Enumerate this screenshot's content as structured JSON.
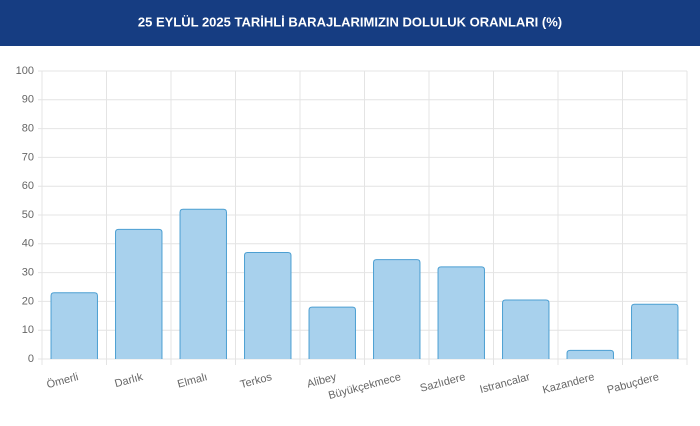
{
  "chart_data": {
    "type": "bar",
    "title": "25 EYLÜL 2025 TARİHLİ BARAJLARIMIZIN DOLULUK ORANLARI (%)",
    "categories": [
      "Ömerli",
      "Darlık",
      "Elmalı",
      "Terkos",
      "Alibey",
      "Büyükçekmece",
      "Sazlıdere",
      "Istrancalar",
      "Kazandere",
      "Pabuçdere"
    ],
    "values": [
      23,
      45,
      52,
      37,
      18,
      34.5,
      32,
      20.5,
      3,
      19
    ],
    "color": "#a8d1ed",
    "border_color": "#4c9fd2",
    "ylim": [
      0,
      100
    ],
    "yticks": [
      0,
      10,
      20,
      30,
      40,
      50,
      60,
      70,
      80,
      90,
      100
    ],
    "grid": true
  }
}
